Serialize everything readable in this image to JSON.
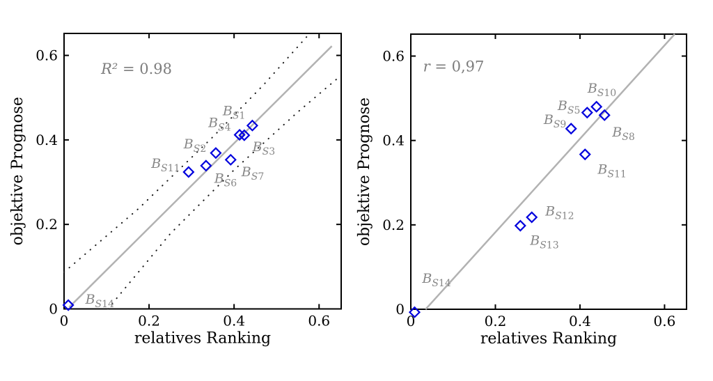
{
  "figure": {
    "background": "#ffffff",
    "marker_color": "#0000dd",
    "fit_line_color": "#b2b2b2",
    "bound_color": "#1a1a1a",
    "label_color": "#878787",
    "annotation_color": "#7d7d7d",
    "axis_color": "#000000"
  },
  "chart_data": [
    {
      "type": "scatter",
      "side": "left",
      "annotation": {
        "var": "R²",
        "rest": " = 0.98",
        "x": 0.087,
        "y": 0.568
      },
      "xlabel": "relatives Ranking",
      "ylabel": "objektive Prognose",
      "xlim": [
        0,
        0.652
      ],
      "ylim": [
        0,
        0.652
      ],
      "xticks": [
        0,
        0.2,
        0.4,
        0.6
      ],
      "xtick_labels": [
        "0",
        "0.2",
        "0.4",
        "0.6"
      ],
      "yticks": [
        0,
        0.2,
        0.4,
        0.6
      ],
      "ytick_labels": [
        "0",
        "0.2",
        "0.4",
        "0.6"
      ],
      "marker": "open-diamond",
      "fit_line": {
        "x1": 0.012,
        "y1": 0.004,
        "x2": 0.63,
        "y2": 0.622
      },
      "bounds": {
        "upper": [
          [
            0.0,
            0.087
          ],
          [
            0.175,
            0.237
          ],
          [
            0.35,
            0.407
          ],
          [
            0.47,
            0.531
          ],
          [
            0.578,
            0.652
          ]
        ],
        "lower": [
          [
            0.103,
            0.0
          ],
          [
            0.25,
            0.178
          ],
          [
            0.4,
            0.329
          ],
          [
            0.55,
            0.466
          ],
          [
            0.652,
            0.553
          ]
        ]
      },
      "points": [
        {
          "id": "BS1",
          "sub": "S1",
          "x": 0.443,
          "y": 0.434,
          "label_x": 0.4,
          "label_y": 0.468
        },
        {
          "id": "BS4",
          "sub": "S4",
          "x": 0.413,
          "y": 0.412,
          "label_x": 0.366,
          "label_y": 0.44
        },
        {
          "id": "BS3",
          "sub": "S3",
          "x": 0.424,
          "y": 0.411,
          "label_x": 0.47,
          "label_y": 0.383
        },
        {
          "id": "BS2",
          "sub": "S2",
          "x": 0.357,
          "y": 0.369,
          "label_x": 0.308,
          "label_y": 0.39
        },
        {
          "id": "BS7",
          "sub": "S7",
          "x": 0.392,
          "y": 0.353,
          "label_x": 0.444,
          "label_y": 0.324
        },
        {
          "id": "BS6",
          "sub": "S6",
          "x": 0.334,
          "y": 0.339,
          "label_x": 0.38,
          "label_y": 0.308
        },
        {
          "id": "BS11",
          "sub": "S11",
          "x": 0.293,
          "y": 0.324,
          "label_x": 0.239,
          "label_y": 0.344
        },
        {
          "id": "BS14",
          "sub": "S14",
          "x": 0.01,
          "y": 0.009,
          "label_x": 0.084,
          "label_y": 0.022
        }
      ]
    },
    {
      "type": "scatter",
      "side": "right",
      "annotation": {
        "var": "r",
        "rest": " = 0,97",
        "x": 0.029,
        "y": 0.575
      },
      "xlabel": "relatives Ranking",
      "ylabel": "objektive Prognose",
      "xlim": [
        0,
        0.652
      ],
      "ylim": [
        0,
        0.652
      ],
      "xticks": [
        0,
        0.2,
        0.4,
        0.6
      ],
      "xtick_labels": [
        "0",
        "0.2",
        "0.4",
        "0.6"
      ],
      "yticks": [
        0,
        0.2,
        0.4,
        0.6
      ],
      "ytick_labels": [
        "0",
        "0.2",
        "0.4",
        "0.6"
      ],
      "marker": "open-diamond",
      "fit_line": {
        "x1": 0.035,
        "y1": 0.0,
        "x2": 0.624,
        "y2": 0.652
      },
      "bounds": null,
      "points": [
        {
          "id": "BS10",
          "sub": "S10",
          "x": 0.439,
          "y": 0.48,
          "label_x": 0.452,
          "label_y": 0.523
        },
        {
          "id": "BS5",
          "sub": "S5",
          "x": 0.417,
          "y": 0.466,
          "label_x": 0.374,
          "label_y": 0.482
        },
        {
          "id": "BS8",
          "sub": "S8",
          "x": 0.458,
          "y": 0.46,
          "label_x": 0.503,
          "label_y": 0.419
        },
        {
          "id": "BS9",
          "sub": "S9",
          "x": 0.379,
          "y": 0.428,
          "label_x": 0.341,
          "label_y": 0.449
        },
        {
          "id": "BS11",
          "sub": "S11",
          "x": 0.412,
          "y": 0.367,
          "label_x": 0.476,
          "label_y": 0.331
        },
        {
          "id": "BS12",
          "sub": "S12",
          "x": 0.286,
          "y": 0.218,
          "label_x": 0.352,
          "label_y": 0.232
        },
        {
          "id": "BS13",
          "sub": "S13",
          "x": 0.259,
          "y": 0.198,
          "label_x": 0.316,
          "label_y": 0.163
        },
        {
          "id": "BS14",
          "sub": "S14",
          "x": 0.009,
          "y": -0.007,
          "label_x": 0.061,
          "label_y": 0.073
        }
      ]
    }
  ]
}
